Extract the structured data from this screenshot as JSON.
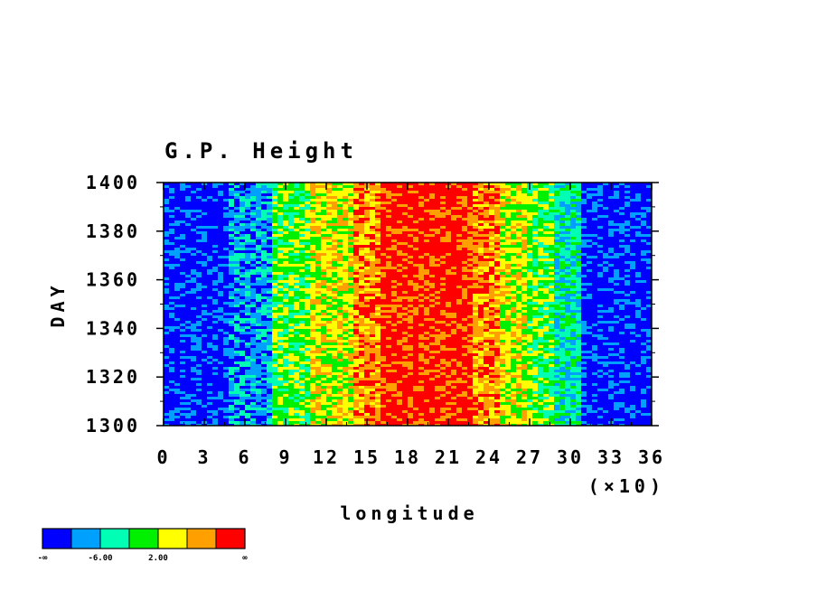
{
  "chart_data": {
    "type": "heatmap",
    "title": "G.P. Height",
    "xlabel": "longitude",
    "ylabel": "DAY",
    "x_multiplier_label": "(×10)",
    "xlim": [
      0,
      36
    ],
    "ylim": [
      1300,
      1400
    ],
    "x_ticks": [
      "0",
      "3",
      "6",
      "9",
      "12",
      "15",
      "18",
      "21",
      "24",
      "27",
      "30",
      "33",
      "36"
    ],
    "y_ticks": [
      "1300",
      "1320",
      "1340",
      "1360",
      "1380",
      "1400"
    ],
    "colorbar": {
      "colors": [
        "#0000ff",
        "#00a0ff",
        "#00ffb4",
        "#00f000",
        "#ffff00",
        "#ffa000",
        "#ff0000"
      ],
      "labels": [
        "-∞",
        "-6.00",
        "2.00",
        "∞"
      ]
    },
    "longitude_bands": [
      {
        "x": [
          0,
          5
        ],
        "dominant": "#0000ff"
      },
      {
        "x": [
          5,
          8
        ],
        "dominant": "#00a0ff"
      },
      {
        "x": [
          8,
          11
        ],
        "dominant": "#00f000"
      },
      {
        "x": [
          11,
          14
        ],
        "dominant": "#ffff00"
      },
      {
        "x": [
          14,
          16
        ],
        "dominant": "#ffa000"
      },
      {
        "x": [
          16,
          23
        ],
        "dominant": "#ff0000"
      },
      {
        "x": [
          23,
          25
        ],
        "dominant": "#ffa000"
      },
      {
        "x": [
          25,
          27
        ],
        "dominant": "#ffff00"
      },
      {
        "x": [
          27,
          29
        ],
        "dominant": "#00f000"
      },
      {
        "x": [
          29,
          31
        ],
        "dominant": "#00ffb4"
      },
      {
        "x": [
          31,
          36
        ],
        "dominant": "#0000ff"
      }
    ]
  }
}
